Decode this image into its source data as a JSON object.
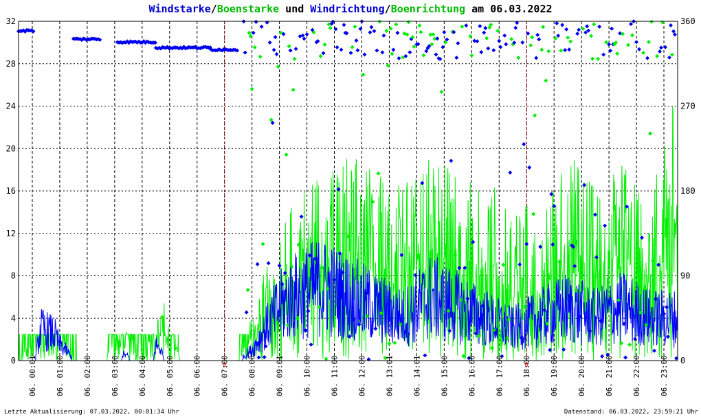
{
  "chart_data": {
    "type": "scatter",
    "title_parts": [
      {
        "text": "Windstarke",
        "color": "#0000cc"
      },
      {
        "text": "/",
        "color": "#000000"
      },
      {
        "text": "Boenstarke",
        "color": "#00bb00"
      },
      {
        "text": " und ",
        "color": "#000000"
      },
      {
        "text": "Windrichtung",
        "color": "#0000cc"
      },
      {
        "text": "/",
        "color": "#000000"
      },
      {
        "text": "Boenrichtung",
        "color": "#00bb00"
      },
      {
        "text": " am 06.03.2022",
        "color": "#000000"
      }
    ],
    "x_tick_labels": [
      "06. 00:01",
      "06. 01:00",
      "06. 02:00",
      "06. 03:00",
      "06. 04:00",
      "06. 05:00",
      "06. 06:00",
      "06. 07:00",
      "06. 08:00",
      "06. 09:01",
      "06. 10:00",
      "06. 11:00",
      "06. 12:00",
      "06. 13:01",
      "06. 14:01",
      "06. 15:00",
      "06. 16:00",
      "06. 17:00",
      "06. 18:00",
      "06. 19:00",
      "06. 20:00",
      "06. 21:00",
      "06. 22:00",
      "06. 23:00"
    ],
    "x_range_hours": [
      0,
      24
    ],
    "y_left_ticks": [
      "0",
      "4",
      "8",
      "12",
      "16",
      "20",
      "24",
      "28",
      "32"
    ],
    "y_left_range": [
      0,
      32
    ],
    "y_right_ticks": [
      "0",
      "90",
      "180",
      "270",
      "360"
    ],
    "y_right_range": [
      0,
      360
    ],
    "grid": true,
    "red_markers": [
      {
        "hour": 7.0,
        "label": "0"
      },
      {
        "hour": 18.0,
        "label": "0"
      }
    ],
    "series_colors": {
      "wind_speed": "#0000ff",
      "gust_speed": "#00ee00",
      "wind_dir": "#0000ee",
      "gust_dir": "#00ee00"
    },
    "wind_speed_keypoints": [
      [
        0,
        0
      ],
      [
        0.6,
        0
      ],
      [
        0.8,
        3
      ],
      [
        1.0,
        2.8
      ],
      [
        1.3,
        2.5
      ],
      [
        1.5,
        1.5
      ],
      [
        1.8,
        0.8
      ],
      [
        2.0,
        0
      ],
      [
        3.7,
        0
      ],
      [
        3.8,
        0.6
      ],
      [
        4.0,
        0.4
      ],
      [
        4.1,
        0
      ],
      [
        4.9,
        0
      ],
      [
        5.0,
        1.5
      ],
      [
        5.2,
        1.0
      ],
      [
        5.3,
        0
      ],
      [
        8.0,
        0
      ],
      [
        8.5,
        1
      ],
      [
        9.0,
        3
      ],
      [
        9.5,
        5
      ],
      [
        10.0,
        6
      ],
      [
        11.0,
        7
      ],
      [
        12.0,
        6
      ],
      [
        13.0,
        5
      ],
      [
        14.0,
        4
      ],
      [
        15.0,
        6
      ],
      [
        16.0,
        5
      ],
      [
        17.0,
        4
      ],
      [
        18.0,
        3
      ],
      [
        19.0,
        4
      ],
      [
        20.0,
        5
      ],
      [
        21.0,
        4
      ],
      [
        22.0,
        5
      ],
      [
        23.0,
        4
      ],
      [
        23.8,
        4
      ]
    ],
    "gust_speed_envelope": [
      [
        0,
        0
      ],
      [
        0.5,
        2.5
      ],
      [
        1.5,
        2.5
      ],
      [
        2.1,
        0
      ],
      [
        3.2,
        0
      ],
      [
        3.3,
        2.5
      ],
      [
        4.0,
        2.5
      ],
      [
        4.6,
        0
      ],
      [
        4.7,
        1.5
      ],
      [
        5.3,
        5
      ],
      [
        5.7,
        2
      ],
      [
        5.9,
        0
      ],
      [
        8.0,
        0
      ],
      [
        8.5,
        4
      ],
      [
        9.0,
        8
      ],
      [
        9.5,
        11
      ],
      [
        10.0,
        14
      ],
      [
        11.0,
        16
      ],
      [
        12.0,
        18
      ],
      [
        13.0,
        16
      ],
      [
        14.0,
        15
      ],
      [
        15.0,
        18
      ],
      [
        16.0,
        16
      ],
      [
        17.0,
        16
      ],
      [
        18.0,
        13
      ],
      [
        19.0,
        14
      ],
      [
        20.0,
        18
      ],
      [
        21.0,
        15
      ],
      [
        22.0,
        17
      ],
      [
        23.0,
        14
      ],
      [
        23.9,
        23
      ]
    ],
    "dir_level_segments": [
      [
        0,
        0.6,
        350
      ],
      [
        2.0,
        3.0,
        341
      ],
      [
        3.6,
        5.0,
        338
      ],
      [
        5.0,
        7.0,
        332
      ],
      [
        7.0,
        8.0,
        330
      ]
    ],
    "x_labels_visible": true
  },
  "footer": {
    "left": "Letzte Aktualisierung: 07.03.2022, 00:01:34 Uhr",
    "right": "Datenstand: 06.03.2022, 23:59:21 Uhr"
  }
}
